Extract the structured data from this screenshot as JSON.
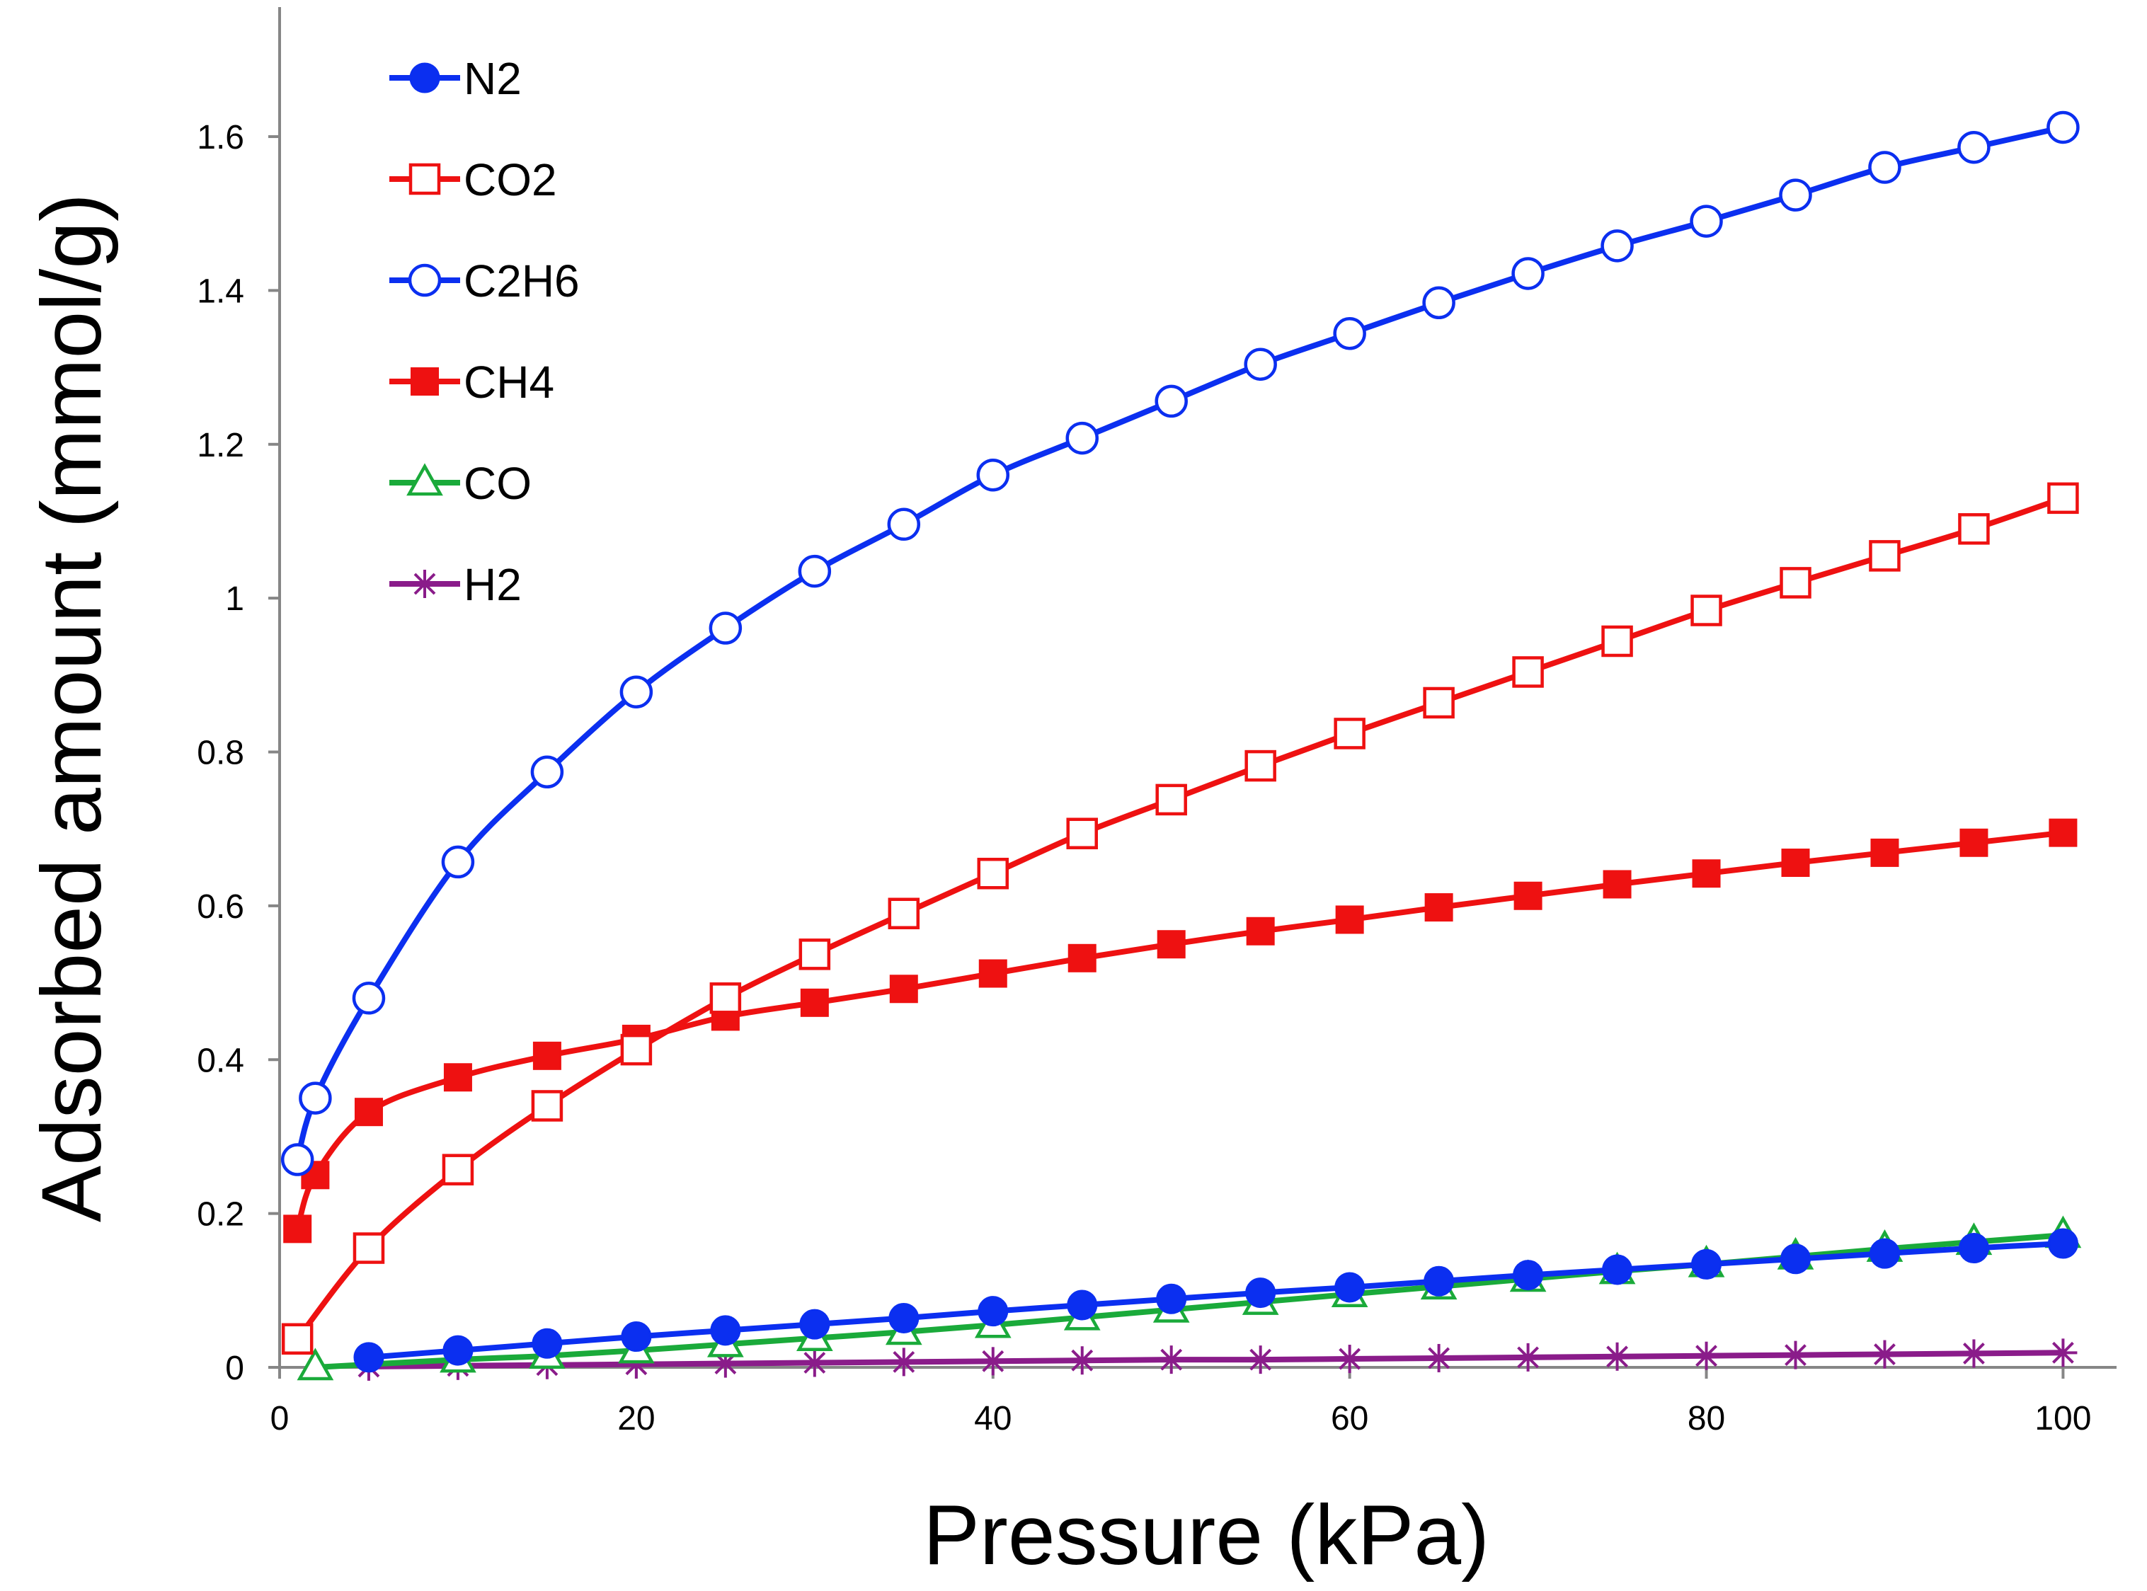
{
  "chart_data": {
    "type": "line",
    "title": "",
    "xlabel": "Pressure (kPa)",
    "ylabel": "Adsorbed amount (mmol/g)",
    "xlim": [
      0,
      103
    ],
    "ylim": [
      0,
      1.75
    ],
    "xticks": [
      0,
      20,
      40,
      60,
      80,
      100
    ],
    "xtick_labels": [
      "0",
      "20",
      "40",
      "60",
      "80",
      "100"
    ],
    "yticks": [
      0,
      0.2,
      0.4,
      0.6,
      0.8,
      1.0,
      1.2,
      1.4,
      1.6
    ],
    "ytick_labels": [
      "0",
      "0.2",
      "0.4",
      "0.6",
      "0.8",
      "1",
      "1.2",
      "1.4",
      "1.6"
    ],
    "grid": false,
    "legend_position": "top-left",
    "series": [
      {
        "name": "N2",
        "color": "#0b2ff0",
        "marker": "circle-filled",
        "x": [
          5,
          10,
          15,
          20,
          25,
          30,
          35,
          40,
          45,
          50,
          55,
          60,
          65,
          70,
          75,
          80,
          85,
          90,
          95,
          100
        ],
        "y": [
          0.013,
          0.022,
          0.031,
          0.04,
          0.048,
          0.056,
          0.064,
          0.073,
          0.081,
          0.089,
          0.097,
          0.104,
          0.112,
          0.12,
          0.127,
          0.134,
          0.141,
          0.148,
          0.155,
          0.161
        ]
      },
      {
        "name": "CO2",
        "color": "#ee1111",
        "marker": "square-open",
        "x": [
          1,
          5,
          10,
          15,
          20,
          25,
          30,
          35,
          40,
          45,
          50,
          55,
          60,
          65,
          70,
          75,
          80,
          85,
          90,
          95,
          100
        ],
        "y": [
          0.037,
          0.155,
          0.257,
          0.34,
          0.413,
          0.48,
          0.537,
          0.59,
          0.642,
          0.694,
          0.738,
          0.782,
          0.824,
          0.864,
          0.904,
          0.944,
          0.984,
          1.02,
          1.055,
          1.09,
          1.13
        ]
      },
      {
        "name": "C2H6",
        "color": "#0b2ff0",
        "marker": "circle-open",
        "x": [
          1,
          2,
          5,
          10,
          15,
          20,
          25,
          30,
          35,
          40,
          45,
          50,
          55,
          60,
          65,
          70,
          75,
          80,
          85,
          90,
          95,
          100
        ],
        "y": [
          0.27,
          0.35,
          0.48,
          0.657,
          0.774,
          0.878,
          0.961,
          1.035,
          1.096,
          1.16,
          1.208,
          1.256,
          1.304,
          1.344,
          1.384,
          1.422,
          1.458,
          1.49,
          1.524,
          1.56,
          1.586,
          1.612
        ]
      },
      {
        "name": "CH4",
        "color": "#ee1111",
        "marker": "square-filled",
        "x": [
          1,
          2,
          5,
          10,
          15,
          20,
          25,
          30,
          35,
          40,
          45,
          50,
          55,
          60,
          65,
          70,
          75,
          80,
          85,
          90,
          95,
          100
        ],
        "y": [
          0.18,
          0.25,
          0.332,
          0.377,
          0.405,
          0.427,
          0.456,
          0.474,
          0.492,
          0.512,
          0.532,
          0.55,
          0.567,
          0.582,
          0.598,
          0.613,
          0.628,
          0.642,
          0.656,
          0.669,
          0.682,
          0.695
        ]
      },
      {
        "name": "CO",
        "color": "#1aaa3a",
        "marker": "triangle-open",
        "x": [
          2,
          10,
          15,
          20,
          25,
          30,
          35,
          40,
          45,
          50,
          55,
          60,
          65,
          70,
          75,
          80,
          85,
          90,
          95,
          100
        ],
        "y": [
          0.0,
          0.01,
          0.015,
          0.022,
          0.03,
          0.038,
          0.046,
          0.055,
          0.065,
          0.075,
          0.085,
          0.095,
          0.105,
          0.115,
          0.125,
          0.134,
          0.144,
          0.154,
          0.163,
          0.172
        ]
      },
      {
        "name": "H2",
        "color": "#8a1c8a",
        "marker": "asterisk",
        "x": [
          5,
          10,
          15,
          20,
          25,
          30,
          35,
          40,
          45,
          50,
          55,
          60,
          65,
          70,
          75,
          80,
          85,
          90,
          95,
          100
        ],
        "y": [
          0.001,
          0.002,
          0.003,
          0.004,
          0.005,
          0.006,
          0.007,
          0.008,
          0.009,
          0.01,
          0.01,
          0.011,
          0.012,
          0.013,
          0.014,
          0.015,
          0.016,
          0.017,
          0.018,
          0.019
        ]
      }
    ]
  }
}
